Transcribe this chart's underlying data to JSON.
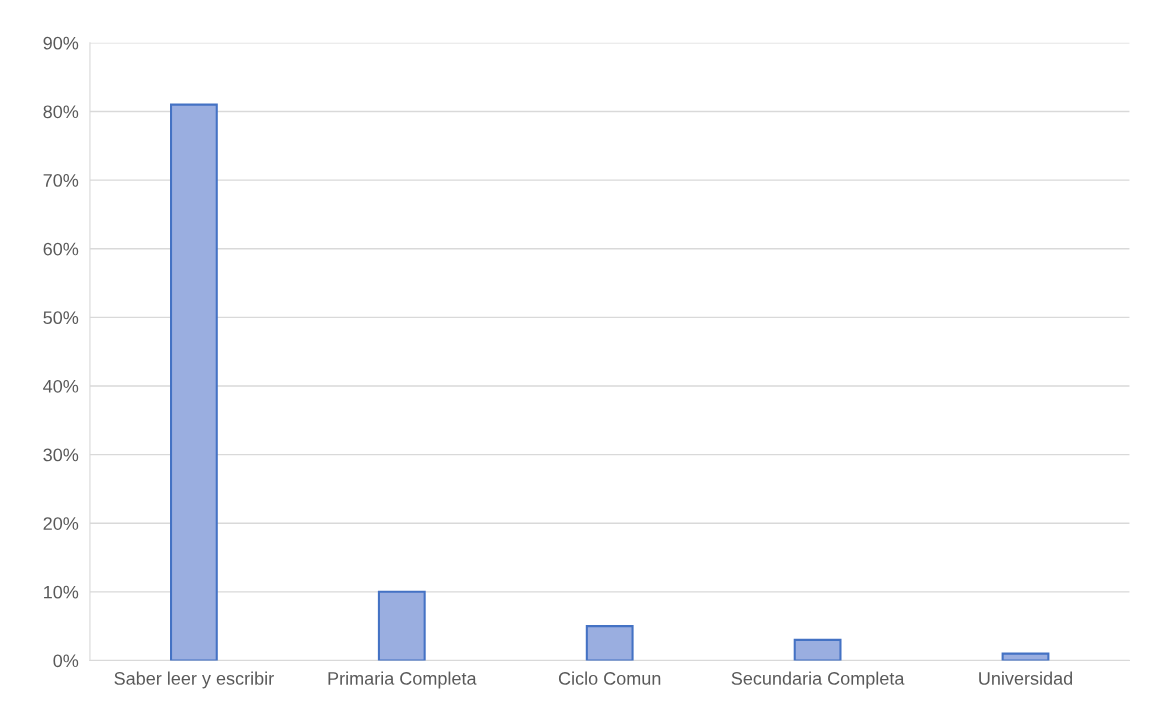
{
  "chart_data": {
    "type": "bar",
    "categories": [
      "Saber leer y escribir",
      "Primaria Completa",
      "Ciclo Comun",
      "Secundaria Completa",
      "Universidad"
    ],
    "values": [
      81,
      10,
      5,
      3,
      1
    ],
    "color": "#9aaee0",
    "ylim": [
      0,
      90
    ],
    "yticks": [
      {
        "value": 0,
        "label": "0%"
      },
      {
        "value": 10,
        "label": "10%"
      },
      {
        "value": 20,
        "label": "20%"
      },
      {
        "value": 30,
        "label": "30%"
      },
      {
        "value": 40,
        "label": "40%"
      },
      {
        "value": 50,
        "label": "50%"
      },
      {
        "value": 60,
        "label": "60%"
      },
      {
        "value": 70,
        "label": "70%"
      },
      {
        "value": 80,
        "label": "80%"
      },
      {
        "value": 90,
        "label": "90%"
      }
    ],
    "grid": "y",
    "legend": false
  }
}
